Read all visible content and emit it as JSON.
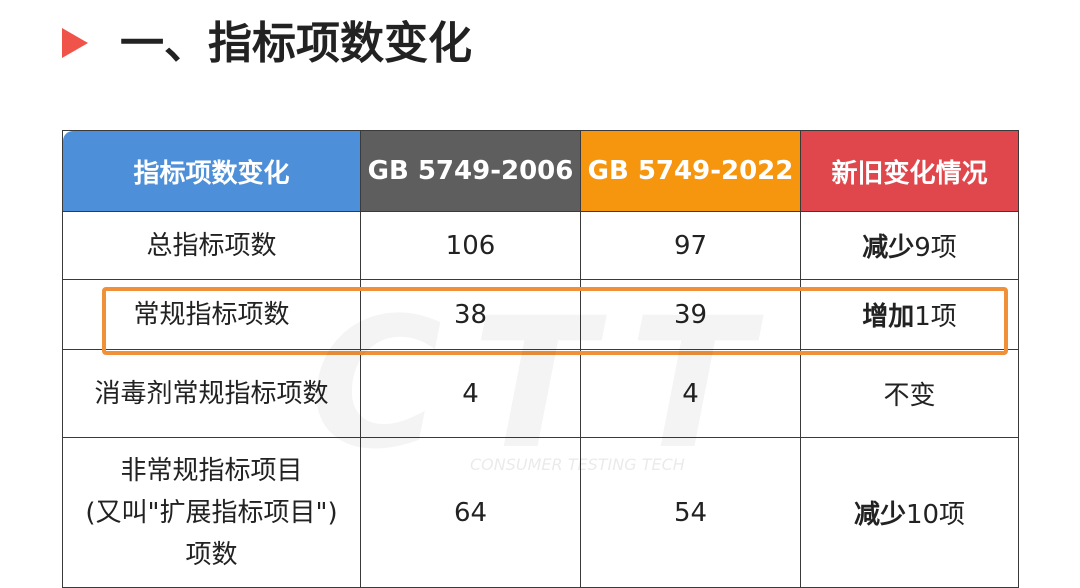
{
  "header": {
    "title": "一、指标项数变化"
  },
  "table": {
    "columns": [
      "指标项数变化",
      "GB 5749-2006",
      "GB 5749-2022",
      "新旧变化情况"
    ],
    "rows": [
      {
        "label": [
          "总指标项数"
        ],
        "old": "106",
        "new": "97",
        "change": {
          "emphasis": "减少",
          "text": "9项"
        }
      },
      {
        "label": [
          "常规指标项数"
        ],
        "old": "38",
        "new": "39",
        "change": {
          "emphasis": "增加",
          "text": "1项"
        }
      },
      {
        "label": [
          "消毒剂常规指标项数"
        ],
        "old": "4",
        "new": "4",
        "change": {
          "emphasis": "",
          "text": "不变"
        }
      },
      {
        "label": [
          "非常规指标项目",
          "(又叫\"扩展指标项目\")",
          "项数"
        ],
        "old": "64",
        "new": "54",
        "change": {
          "emphasis": "减少",
          "text": "10项"
        }
      }
    ]
  },
  "watermark": {
    "logo": "CTT",
    "tagline": "CONSUMER TESTING TECH"
  }
}
